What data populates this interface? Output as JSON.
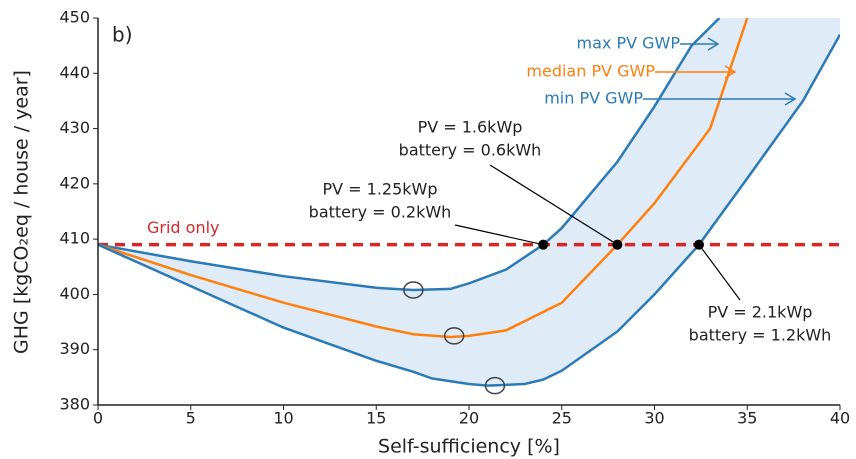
{
  "chart_data": {
    "type": "line",
    "panel_label": "b)",
    "xlabel": "Self-sufficiency [%]",
    "ylabel": "GHG [kgCO₂eq / house / year]",
    "xlim": [
      0,
      40
    ],
    "ylim": [
      380,
      450
    ],
    "xticks": [
      0,
      5,
      10,
      15,
      20,
      25,
      30,
      35,
      40
    ],
    "yticks": [
      380,
      390,
      400,
      410,
      420,
      430,
      440,
      450
    ],
    "band_color": "#dfecf7",
    "series": [
      {
        "name": "max PV GWP",
        "color": "#2a7ab8",
        "x": [
          0,
          5,
          10,
          15,
          17,
          19,
          20,
          22,
          24,
          25,
          28,
          30,
          32,
          33.5
        ],
        "values": [
          409,
          406,
          403.3,
          401.2,
          400.8,
          401,
          402,
          404.5,
          409,
          412,
          424,
          434,
          445,
          450
        ]
      },
      {
        "name": "median PV GWP",
        "color": "#ff7f0e",
        "x": [
          0,
          5,
          10,
          15,
          17,
          19,
          20,
          22,
          25,
          28,
          30,
          33,
          35
        ],
        "values": [
          409,
          403.5,
          398.5,
          394.2,
          392.8,
          392.3,
          392.5,
          393.5,
          398.5,
          409,
          416.5,
          430,
          450
        ]
      },
      {
        "name": "min PV GWP",
        "color": "#2a7ab8",
        "x": [
          0,
          5,
          10,
          15,
          17,
          18,
          20,
          21,
          23,
          24,
          25,
          28,
          30,
          32.4,
          35,
          38,
          40
        ],
        "values": [
          409,
          401.5,
          394,
          388,
          386,
          384.8,
          383.8,
          383.5,
          383.8,
          384.6,
          386.2,
          393.3,
          400,
          409,
          421,
          435,
          447
        ]
      }
    ],
    "reference": {
      "label": "Grid only",
      "value": 409,
      "color": "#d62728"
    },
    "minima": [
      {
        "x": 17,
        "y": 400.8
      },
      {
        "x": 19.2,
        "y": 392.5
      },
      {
        "x": 21.4,
        "y": 383.5
      }
    ],
    "annotations": [
      {
        "lines": [
          "PV = 1.25kWp",
          "battery = 0.2kWh"
        ],
        "x": 24,
        "y": 409
      },
      {
        "lines": [
          "PV = 1.6kWp",
          "battery = 0.6kWh"
        ],
        "x": 28,
        "y": 409
      },
      {
        "lines": [
          "PV = 2.1kWp",
          "battery = 1.2kWh"
        ],
        "x": 32.4,
        "y": 409
      }
    ]
  }
}
